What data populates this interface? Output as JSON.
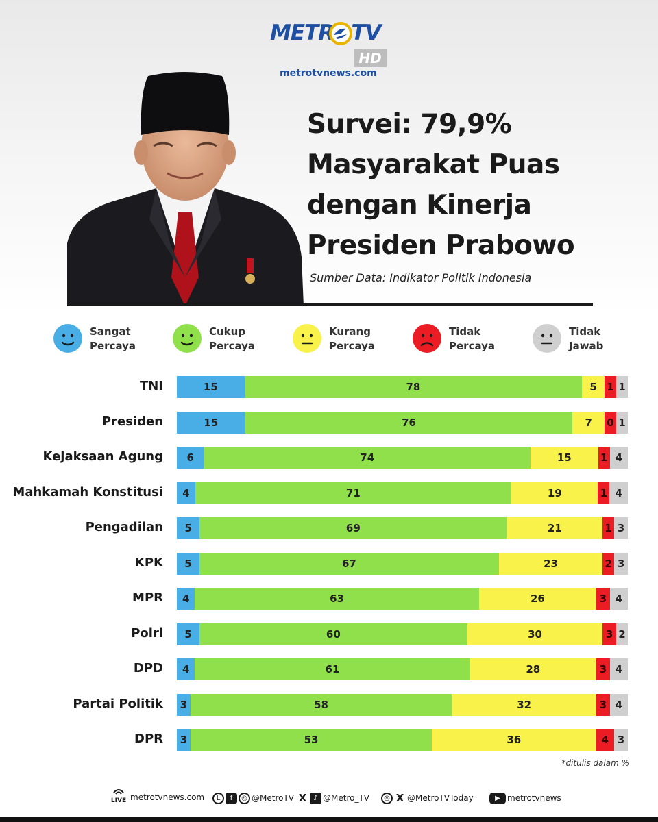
{
  "brand": {
    "name": "METROTV",
    "badge": "HD",
    "site": "metrotvnews.com",
    "color": "#1e4fa3"
  },
  "headline": {
    "lines": [
      "Survei: 79,9%",
      "Masyarakat Puas",
      "dengan Kinerja",
      "Presiden Prabowo"
    ]
  },
  "source": "Sumber Data: Indikator Politik Indonesia",
  "legend": [
    {
      "line1": "Sangat",
      "line2": "Percaya",
      "color": "#4aaee6",
      "icon": "smile-face-icon"
    },
    {
      "line1": "Cukup",
      "line2": "Percaya",
      "color": "#8fe04a",
      "icon": "smile-face-icon"
    },
    {
      "line1": "Kurang",
      "line2": "Percaya",
      "color": "#f8f24a",
      "icon": "neutral-face-icon"
    },
    {
      "line1": "Tidak",
      "line2": "Percaya",
      "color": "#ec1c24",
      "icon": "sad-face-icon"
    },
    {
      "line1": "Tidak",
      "line2": "Jawab",
      "color": "#cfcfcf",
      "icon": "neutral-face-icon"
    }
  ],
  "chart_data": {
    "type": "bar",
    "orientation": "horizontal",
    "stacked": true,
    "categories": [
      "TNI",
      "Presiden",
      "Kejaksaan Agung",
      "Mahkamah Konstitusi",
      "Pengadilan",
      "KPK",
      "MPR",
      "Polri",
      "DPD",
      "Partai Politik",
      "DPR"
    ],
    "series": [
      {
        "name": "Sangat Percaya",
        "color": "#4aaee6",
        "values": [
          15,
          15,
          6,
          4,
          5,
          5,
          4,
          5,
          4,
          3,
          3
        ]
      },
      {
        "name": "Cukup Percaya",
        "color": "#8fe04a",
        "values": [
          78,
          76,
          74,
          71,
          69,
          67,
          63,
          60,
          61,
          58,
          53
        ]
      },
      {
        "name": "Kurang Percaya",
        "color": "#f8f24a",
        "values": [
          5,
          7,
          15,
          19,
          21,
          23,
          26,
          30,
          28,
          32,
          36
        ]
      },
      {
        "name": "Tidak Percaya",
        "color": "#ec1c24",
        "values": [
          1,
          0,
          1,
          1,
          1,
          2,
          3,
          3,
          3,
          3,
          4
        ]
      },
      {
        "name": "Tidak Jawab",
        "color": "#cfcfcf",
        "values": [
          1,
          1,
          4,
          4,
          3,
          3,
          4,
          2,
          4,
          4,
          3
        ]
      }
    ],
    "footnote": "*ditulis dalam %"
  },
  "footer": {
    "live": "LIVE",
    "site": "metrotvnews.com",
    "handle1": "@MetroTV",
    "handle2": "@Metro_TV",
    "handle3": "@MetroTVToday",
    "youtube": "metrotvnews"
  }
}
